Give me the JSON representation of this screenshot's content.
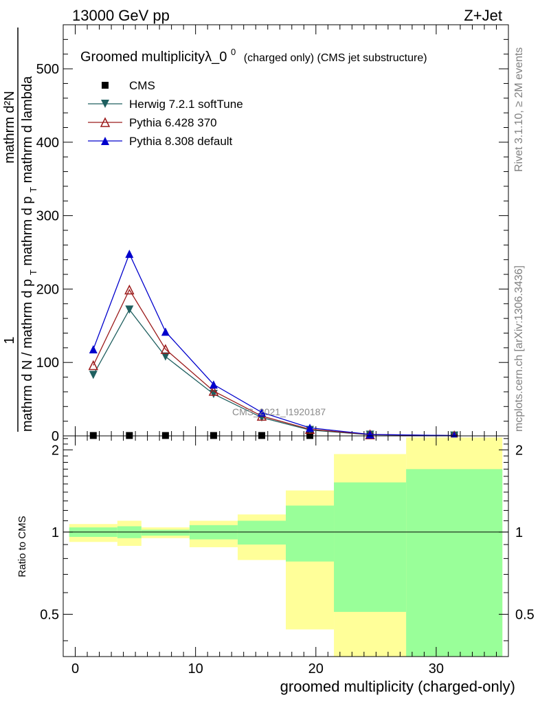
{
  "header": {
    "left": "13000 GeV pp",
    "right": "Z+Jet"
  },
  "side_text": {
    "top": "Rivet 3.1.10, ≥ 2M events",
    "bottom": "mcplots.cern.ch [arXiv:1306.3436]"
  },
  "watermark": "CMS_2021_I1920187",
  "chart_data": [
    {
      "type": "line",
      "title": "Groomed multiplicityλ_0⁰ (charged only) (CMS jet substructure)",
      "title_main": "Groomed multiplicityλ_0",
      "title_sup": "0",
      "title_rest": "(charged only) (CMS jet substructure)",
      "ylabel_numerator": "mathrm d²N",
      "ylabel_numerator_lines": [
        "1",
        "mathrm d²N"
      ],
      "ylabel_denominator_lines": [
        "mathrm d N / mathrm d p",
        "T",
        "mathrm d p",
        "T",
        "mathrm d lambda"
      ],
      "ylabel_denominator": "mathrm d N / mathrm d pT mathrm d pT mathrm d lambda",
      "xlim": [
        -1,
        36
      ],
      "ylim": [
        0,
        560
      ],
      "yticks": [
        0,
        100,
        200,
        300,
        400,
        500
      ],
      "x": [
        1.5,
        4.5,
        7.5,
        11.5,
        15.5,
        19.5,
        24.5,
        31.5
      ],
      "series": [
        {
          "name": "CMS",
          "marker": "square",
          "color": "#000000",
          "values": [
            0.5,
            0.5,
            0.5,
            0.5,
            0.5,
            0.5,
            0.5,
            0.5
          ]
        },
        {
          "name": "Herwig 7.2.1 softTune",
          "marker": "triangle-down",
          "color": "#1f5f5f",
          "values": [
            83,
            172,
            108,
            57,
            25,
            8,
            1.5,
            0.3
          ]
        },
        {
          "name": "Pythia 6.428 370",
          "marker": "triangle-up-open",
          "color": "#9b1a1a",
          "values": [
            96,
            199,
            118,
            61,
            27,
            9,
            1.8,
            0.3
          ]
        },
        {
          "name": "Pythia 8.308 default",
          "marker": "triangle-up",
          "color": "#0000cc",
          "values": [
            118,
            248,
            142,
            70,
            32,
            11,
            2,
            0.4
          ]
        }
      ],
      "legend": "top-left"
    },
    {
      "type": "area",
      "ylabel": "Ratio to CMS",
      "xlabel": "groomed multiplicity (charged-only)",
      "xlim": [
        -1,
        36
      ],
      "ylim": [
        0.35,
        2.25
      ],
      "yticks": [
        0.5,
        1,
        2
      ],
      "ytick_labels": [
        "0.5",
        "1",
        "2"
      ],
      "xticks": [
        0,
        10,
        20,
        30
      ],
      "bins": [
        {
          "lo": -0.5,
          "hi": 3.5,
          "green": [
            0.96,
            1.04
          ],
          "yellow": [
            0.92,
            1.07
          ]
        },
        {
          "lo": 3.5,
          "hi": 5.5,
          "green": [
            0.95,
            1.05
          ],
          "yellow": [
            0.89,
            1.1
          ]
        },
        {
          "lo": 5.5,
          "hi": 9.5,
          "green": [
            0.97,
            1.02
          ],
          "yellow": [
            0.95,
            1.04
          ]
        },
        {
          "lo": 9.5,
          "hi": 13.5,
          "green": [
            0.94,
            1.06
          ],
          "yellow": [
            0.88,
            1.1
          ]
        },
        {
          "lo": 13.5,
          "hi": 17.5,
          "green": [
            0.9,
            1.1
          ],
          "yellow": [
            0.79,
            1.16
          ]
        },
        {
          "lo": 17.5,
          "hi": 21.5,
          "green": [
            0.78,
            1.25
          ],
          "yellow": [
            0.44,
            1.42
          ]
        },
        {
          "lo": 21.5,
          "hi": 27.5,
          "green": [
            0.51,
            1.52
          ],
          "yellow": [
            0.35,
            1.93
          ]
        },
        {
          "lo": 27.5,
          "hi": 35.5,
          "green": [
            0.35,
            1.7
          ],
          "yellow": [
            0.35,
            2.22
          ]
        }
      ],
      "colors": {
        "green": "#99ff99",
        "yellow": "#ffff99",
        "line": "#000000"
      }
    }
  ]
}
